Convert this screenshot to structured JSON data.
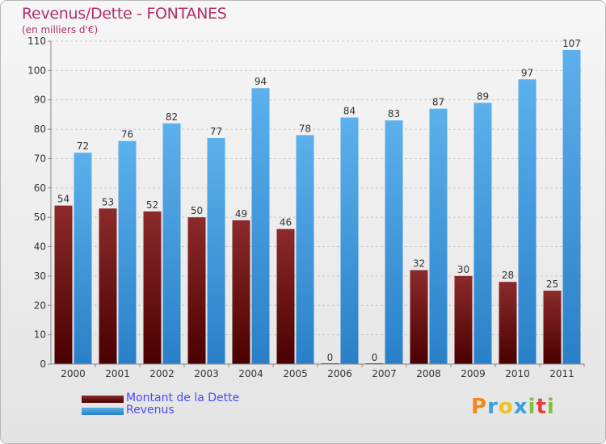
{
  "header": {
    "title": "Revenus/Dette - FONTANES",
    "subtitle": "(en milliers d'€)"
  },
  "chart_data": {
    "type": "bar",
    "title": "Revenus/Dette - FONTANES",
    "ylabel": "(en milliers d'€)",
    "categories": [
      "2000",
      "2001",
      "2002",
      "2003",
      "2004",
      "2005",
      "2006",
      "2007",
      "2008",
      "2009",
      "2010",
      "2011"
    ],
    "series": [
      {
        "name": "Montant de la Dette",
        "values": [
          54,
          53,
          52,
          50,
          49,
          46,
          0,
          0,
          32,
          30,
          28,
          25
        ],
        "color": "#7a1818"
      },
      {
        "name": "Revenus",
        "values": [
          72,
          76,
          82,
          77,
          94,
          78,
          84,
          83,
          87,
          89,
          97,
          107
        ],
        "color": "#4aa3e3"
      }
    ],
    "ylim": [
      0,
      110
    ],
    "yticks": [
      0,
      10,
      20,
      30,
      40,
      50,
      60,
      70,
      80,
      90,
      100,
      110
    ],
    "grid": true,
    "legend": "bottom-left"
  },
  "logo": {
    "text": "Proxiti",
    "letters": [
      {
        "ch": "P",
        "color": "#f08a1c"
      },
      {
        "ch": "r",
        "color": "#3aa0e0"
      },
      {
        "ch": "o",
        "color": "#f0c020"
      },
      {
        "ch": "x",
        "color": "#3aa0e0"
      },
      {
        "ch": "i",
        "color": "#80c040"
      },
      {
        "ch": "t",
        "color": "#e04040"
      },
      {
        "ch": "i",
        "color": "#80c040"
      }
    ]
  }
}
